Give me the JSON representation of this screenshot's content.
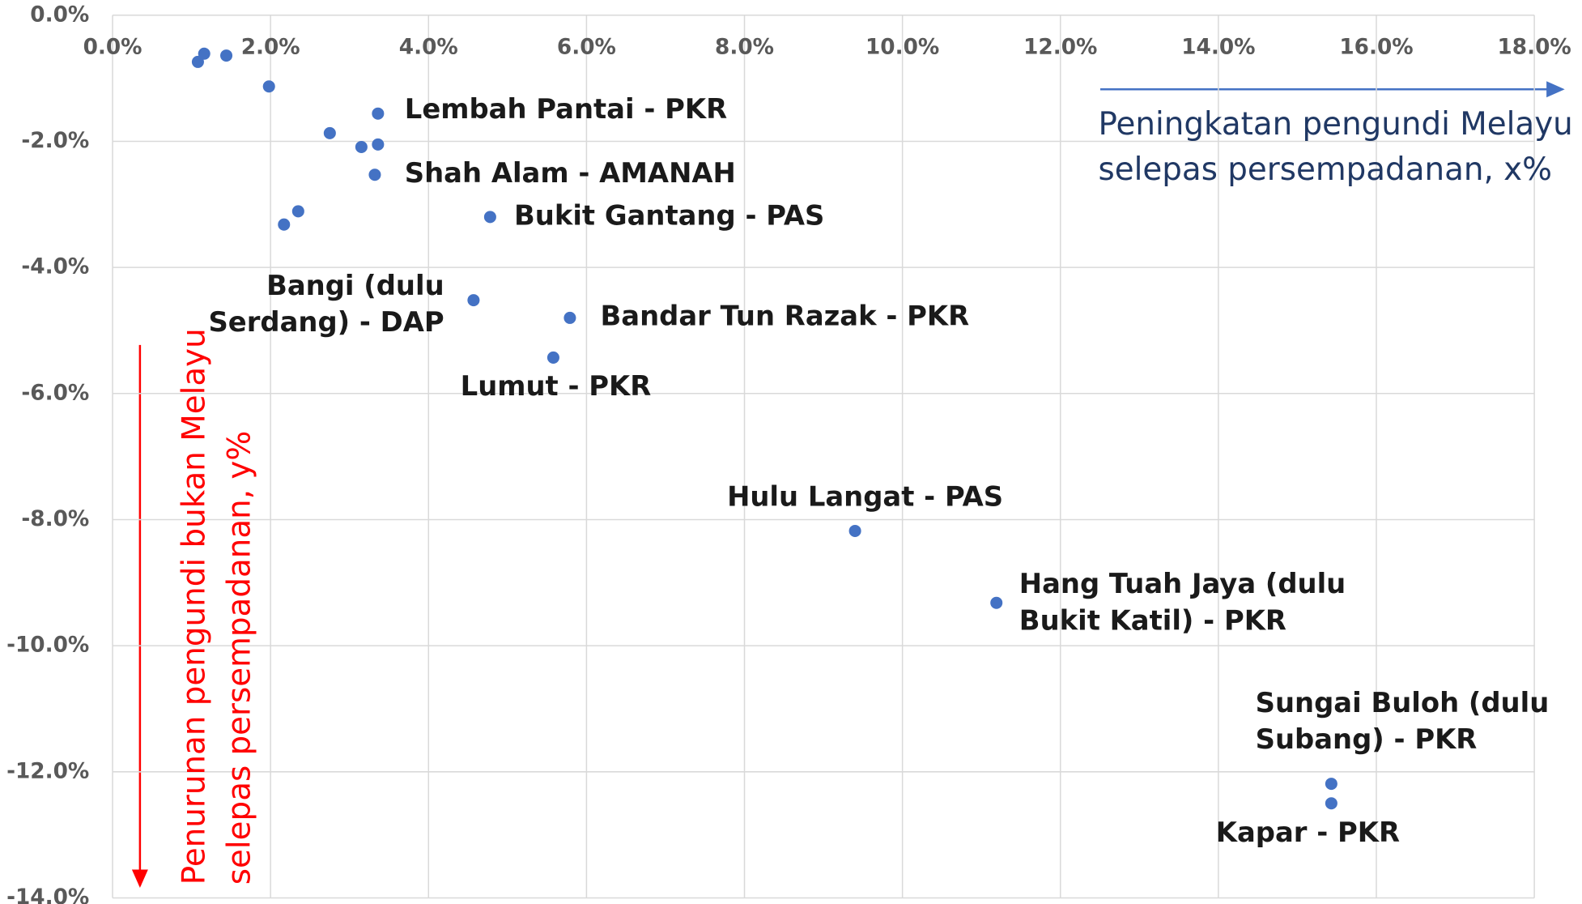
{
  "chart_data": {
    "type": "scatter",
    "x": [
      1.08,
      1.16,
      1.44,
      1.98,
      3.36,
      2.75,
      3.15,
      3.36,
      3.32,
      2.35,
      2.17,
      4.78,
      4.57,
      5.79,
      5.58,
      9.4,
      11.19,
      15.43,
      15.43
    ],
    "values": [
      -0.74,
      -0.61,
      -0.64,
      -1.13,
      -1.56,
      -1.87,
      -2.09,
      -2.05,
      -2.53,
      -3.11,
      -3.32,
      -3.2,
      -4.52,
      -4.8,
      -5.43,
      -8.18,
      -9.32,
      -12.19,
      -12.5
    ],
    "color": "#4472c4",
    "xlim": [
      0,
      18
    ],
    "ylim": [
      -14,
      0
    ],
    "xticks": [
      {
        "value": 0,
        "label": "0.0%"
      },
      {
        "value": 2,
        "label": "2.0%"
      },
      {
        "value": 4,
        "label": "4.0%"
      },
      {
        "value": 6,
        "label": "6.0%"
      },
      {
        "value": 8,
        "label": "8.0%"
      },
      {
        "value": 10,
        "label": "10.0%"
      },
      {
        "value": 12,
        "label": "12.0%"
      },
      {
        "value": 14,
        "label": "14.0%"
      },
      {
        "value": 16,
        "label": "16.0%"
      },
      {
        "value": 18,
        "label": "18.0%"
      }
    ],
    "yticks": [
      {
        "value": 0,
        "label": "0.0%"
      },
      {
        "value": -2,
        "label": "-2.0%"
      },
      {
        "value": -4,
        "label": "-4.0%"
      },
      {
        "value": -6,
        "label": "-6.0%"
      },
      {
        "value": -8,
        "label": "-8.0%"
      },
      {
        "value": -10,
        "label": "-10.0%"
      },
      {
        "value": -12,
        "label": "-12.0%"
      },
      {
        "value": -14,
        "label": "-14.0%"
      }
    ],
    "grid": true,
    "xlabel": [
      "Peningkatan pengundi Melayu",
      "selepas persempadanan, x%"
    ],
    "xlabel_color": "#203864",
    "ylabel": [
      "Penurunan pengundi bukan Melayu",
      "selepas persempadanan, y%"
    ],
    "ylabel_color": "#ff0000",
    "annotations": [
      [
        "Lembah Pantai - PKR"
      ],
      [
        "Shah Alam - AMANAH"
      ],
      [
        "Bukit Gantang - PAS"
      ],
      [
        "Bangi (dulu",
        "Serdang) - DAP"
      ],
      [
        "Bandar Tun Razak - PKR"
      ],
      [
        "Lumut - PKR"
      ],
      [
        "Hulu Langat - PAS"
      ],
      [
        "Hang Tuah Jaya (dulu",
        "Bukit Katil)  - PKR"
      ],
      [
        "Sungai Buloh (dulu",
        "Subang) - PKR"
      ],
      [
        "Kapar - PKR"
      ]
    ]
  }
}
